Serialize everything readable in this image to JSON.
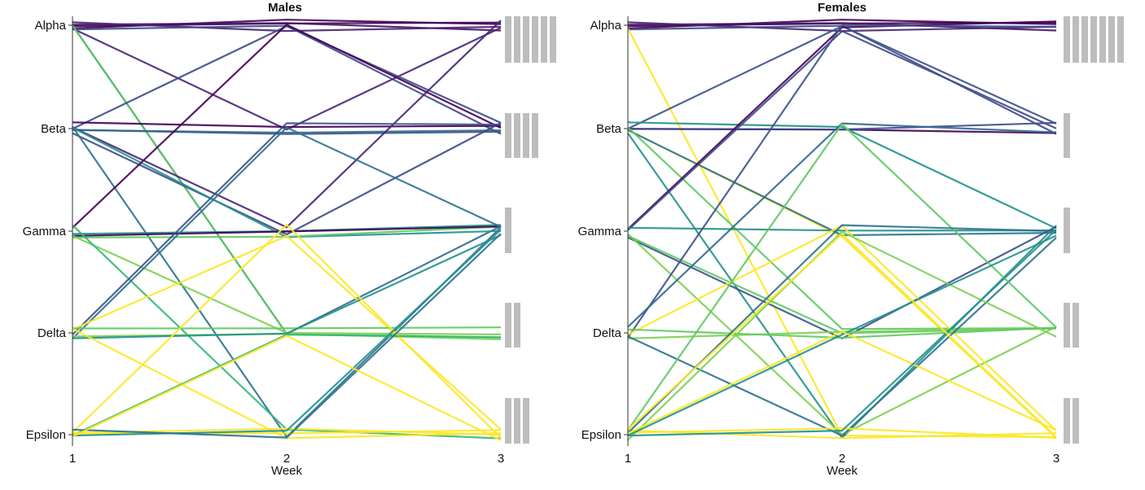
{
  "chart_data": [
    {
      "type": "line",
      "title": "Males",
      "xlabel": "Week",
      "x": [
        1,
        2,
        3
      ],
      "x_ticks": [
        "1",
        "2",
        "3"
      ],
      "categories": [
        "Alpha",
        "Beta",
        "Gamma",
        "Delta",
        "Epsilon"
      ],
      "series": [
        {
          "values": [
            "Alpha",
            "Alpha",
            "Alpha"
          ],
          "color": "#440154"
        },
        {
          "values": [
            "Alpha",
            "Alpha",
            "Alpha"
          ],
          "color": "#440154"
        },
        {
          "values": [
            "Alpha",
            "Alpha",
            "Alpha"
          ],
          "color": "#471365"
        },
        {
          "values": [
            "Alpha",
            "Alpha",
            "Alpha"
          ],
          "color": "#482475"
        },
        {
          "values": [
            "Alpha",
            "Alpha",
            "Beta"
          ],
          "color": "#3e4989"
        },
        {
          "values": [
            "Alpha",
            "Beta",
            "Alpha"
          ],
          "color": "#482475"
        },
        {
          "values": [
            "Alpha",
            "Delta",
            "Gamma"
          ],
          "color": "#31688e"
        },
        {
          "values": [
            "Alpha",
            "Delta",
            "Delta"
          ],
          "color": "#5ec962"
        },
        {
          "values": [
            "Beta",
            "Alpha",
            "Beta"
          ],
          "color": "#3e4989"
        },
        {
          "values": [
            "Beta",
            "Beta",
            "Beta"
          ],
          "color": "#440154"
        },
        {
          "values": [
            "Beta",
            "Beta",
            "Beta"
          ],
          "color": "#3b528b"
        },
        {
          "values": [
            "Beta",
            "Beta",
            "Beta"
          ],
          "color": "#31688e"
        },
        {
          "values": [
            "Beta",
            "Gamma",
            "Alpha"
          ],
          "color": "#482475"
        },
        {
          "values": [
            "Beta",
            "Gamma",
            "Beta"
          ],
          "color": "#3e4989"
        },
        {
          "values": [
            "Beta",
            "Epsilon",
            "Gamma"
          ],
          "color": "#2c728e"
        },
        {
          "values": [
            "Beta",
            "Gamma",
            "Gamma"
          ],
          "color": "#21918c"
        },
        {
          "values": [
            "Gamma",
            "Alpha",
            "Beta"
          ],
          "color": "#440154"
        },
        {
          "values": [
            "Gamma",
            "Gamma",
            "Gamma"
          ],
          "color": "#5ec962"
        },
        {
          "values": [
            "Gamma",
            "Gamma",
            "Gamma"
          ],
          "color": "#21918c"
        },
        {
          "values": [
            "Gamma",
            "Gamma",
            "Gamma"
          ],
          "color": "#440154"
        },
        {
          "values": [
            "Gamma",
            "Delta",
            "Delta"
          ],
          "color": "#7ad151"
        },
        {
          "values": [
            "Gamma",
            "Epsilon",
            "Epsilon"
          ],
          "color": "#35b779"
        },
        {
          "values": [
            "Delta",
            "Beta",
            "Beta"
          ],
          "color": "#3b528b"
        },
        {
          "values": [
            "Delta",
            "Beta",
            "Gamma"
          ],
          "color": "#2c728e"
        },
        {
          "values": [
            "Delta",
            "Gamma",
            "Epsilon"
          ],
          "color": "#fde725"
        },
        {
          "values": [
            "Delta",
            "Delta",
            "Delta"
          ],
          "color": "#7ad151"
        },
        {
          "values": [
            "Delta",
            "Delta",
            "Delta"
          ],
          "color": "#5ec962"
        },
        {
          "values": [
            "Delta",
            "Delta",
            "Gamma"
          ],
          "color": "#21918c"
        },
        {
          "values": [
            "Delta",
            "Epsilon",
            "Epsilon"
          ],
          "color": "#fde725"
        },
        {
          "values": [
            "Epsilon",
            "Gamma",
            "Epsilon"
          ],
          "color": "#fde725"
        },
        {
          "values": [
            "Epsilon",
            "Delta",
            "Delta"
          ],
          "color": "#35b779"
        },
        {
          "values": [
            "Epsilon",
            "Epsilon",
            "Epsilon"
          ],
          "color": "#fde725"
        },
        {
          "values": [
            "Epsilon",
            "Epsilon",
            "Epsilon"
          ],
          "color": "#fde725"
        },
        {
          "values": [
            "Epsilon",
            "Epsilon",
            "Gamma"
          ],
          "color": "#21918c"
        },
        {
          "values": [
            "Epsilon",
            "Epsilon",
            "Gamma"
          ],
          "color": "#2c728e"
        },
        {
          "values": [
            "Epsilon",
            "Delta",
            "Epsilon"
          ],
          "color": "#fde725"
        }
      ],
      "right_counts": {
        "Alpha": 6,
        "Beta": 4,
        "Gamma": 1,
        "Delta": 2,
        "Epsilon": 3
      }
    },
    {
      "type": "line",
      "title": "Females",
      "xlabel": "Week",
      "x": [
        1,
        2,
        3
      ],
      "x_ticks": [
        "1",
        "2",
        "3"
      ],
      "categories": [
        "Alpha",
        "Beta",
        "Gamma",
        "Delta",
        "Epsilon"
      ],
      "series": [
        {
          "values": [
            "Alpha",
            "Alpha",
            "Alpha"
          ],
          "color": "#440154"
        },
        {
          "values": [
            "Alpha",
            "Alpha",
            "Alpha"
          ],
          "color": "#440154"
        },
        {
          "values": [
            "Alpha",
            "Alpha",
            "Alpha"
          ],
          "color": "#471365"
        },
        {
          "values": [
            "Alpha",
            "Alpha",
            "Alpha"
          ],
          "color": "#482475"
        },
        {
          "values": [
            "Alpha",
            "Alpha",
            "Beta"
          ],
          "color": "#3e4989"
        },
        {
          "values": [
            "Alpha",
            "Epsilon",
            "Epsilon"
          ],
          "color": "#fde725"
        },
        {
          "values": [
            "Beta",
            "Alpha",
            "Beta"
          ],
          "color": "#3b528b"
        },
        {
          "values": [
            "Beta",
            "Beta",
            "Beta"
          ],
          "color": "#440154"
        },
        {
          "values": [
            "Beta",
            "Beta",
            "Beta"
          ],
          "color": "#3e4989"
        },
        {
          "values": [
            "Beta",
            "Beta",
            "Gamma"
          ],
          "color": "#21918c"
        },
        {
          "values": [
            "Beta",
            "Gamma",
            "Epsilon"
          ],
          "color": "#fde725"
        },
        {
          "values": [
            "Beta",
            "Gamma",
            "Gamma"
          ],
          "color": "#2c728e"
        },
        {
          "values": [
            "Beta",
            "Delta",
            "Delta"
          ],
          "color": "#5ec962"
        },
        {
          "values": [
            "Beta",
            "Epsilon",
            "Gamma"
          ],
          "color": "#21918c"
        },
        {
          "values": [
            "Gamma",
            "Alpha",
            "Alpha"
          ],
          "color": "#440154"
        },
        {
          "values": [
            "Gamma",
            "Alpha",
            "Beta"
          ],
          "color": "#3e4989"
        },
        {
          "values": [
            "Gamma",
            "Gamma",
            "Gamma"
          ],
          "color": "#21918c"
        },
        {
          "values": [
            "Gamma",
            "Delta",
            "Gamma"
          ],
          "color": "#3b528b"
        },
        {
          "values": [
            "Gamma",
            "Epsilon",
            "Delta"
          ],
          "color": "#7ad151"
        },
        {
          "values": [
            "Gamma",
            "Delta",
            "Delta"
          ],
          "color": "#5ec962"
        },
        {
          "values": [
            "Delta",
            "Alpha",
            "Alpha"
          ],
          "color": "#3b528b"
        },
        {
          "values": [
            "Delta",
            "Beta",
            "Beta"
          ],
          "color": "#31688e"
        },
        {
          "values": [
            "Delta",
            "Gamma",
            "Epsilon"
          ],
          "color": "#fde725"
        },
        {
          "values": [
            "Delta",
            "Delta",
            "Delta"
          ],
          "color": "#7ad151"
        },
        {
          "values": [
            "Delta",
            "Delta",
            "Delta"
          ],
          "color": "#5ec962"
        },
        {
          "values": [
            "Delta",
            "Epsilon",
            "Gamma"
          ],
          "color": "#2c728e"
        },
        {
          "values": [
            "Epsilon",
            "Beta",
            "Delta"
          ],
          "color": "#5ec962"
        },
        {
          "values": [
            "Epsilon",
            "Gamma",
            "Delta"
          ],
          "color": "#7ad151"
        },
        {
          "values": [
            "Epsilon",
            "Epsilon",
            "Epsilon"
          ],
          "color": "#fde725"
        },
        {
          "values": [
            "Epsilon",
            "Epsilon",
            "Epsilon"
          ],
          "color": "#fde725"
        },
        {
          "values": [
            "Epsilon",
            "Delta",
            "Gamma"
          ],
          "color": "#21918c"
        },
        {
          "values": [
            "Epsilon",
            "Gamma",
            "Gamma"
          ],
          "color": "#2c728e"
        },
        {
          "values": [
            "Epsilon",
            "Delta",
            "Epsilon"
          ],
          "color": "#fde725"
        },
        {
          "values": [
            "Epsilon",
            "Epsilon",
            "Gamma"
          ],
          "color": "#21918c"
        },
        {
          "values": [
            "Epsilon",
            "Gamma",
            "Epsilon"
          ],
          "color": "#fde725"
        }
      ],
      "right_counts": {
        "Alpha": 7,
        "Beta": 1,
        "Gamma": 1,
        "Delta": 2,
        "Epsilon": 2
      }
    }
  ]
}
